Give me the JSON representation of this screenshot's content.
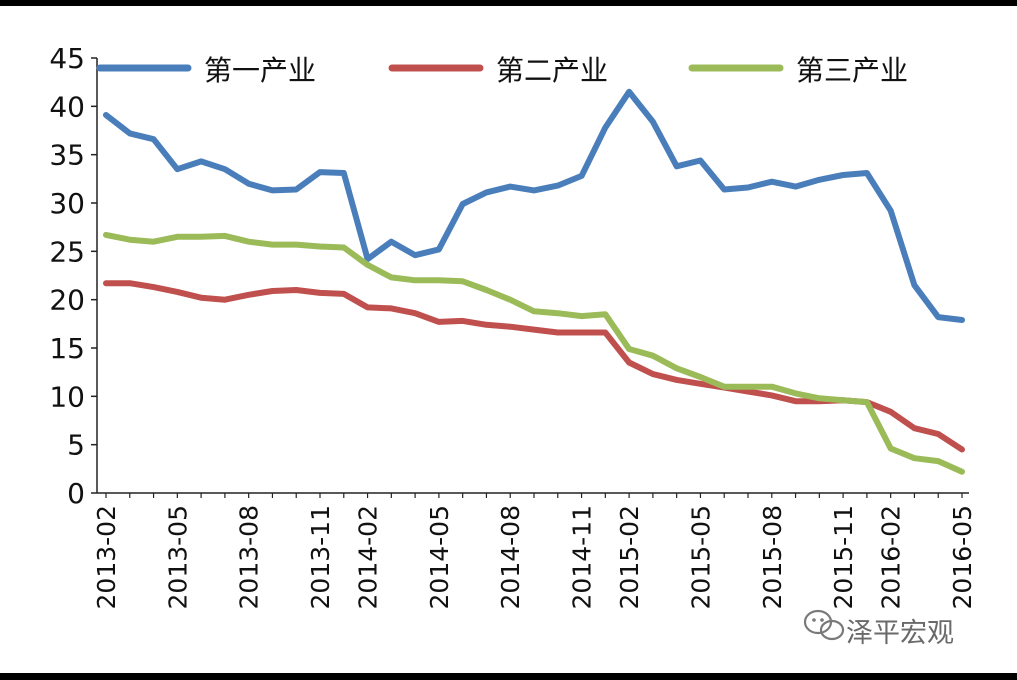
{
  "chart_data": {
    "type": "line",
    "title": "",
    "xlabel": "",
    "ylabel": "",
    "ylim": [
      0,
      45
    ],
    "yticks": [
      "0",
      "5",
      "10",
      "15",
      "20",
      "25",
      "30",
      "35",
      "40",
      "45"
    ],
    "xtick_labels": [
      "2013-02",
      "2013-05",
      "2013-08",
      "2013-11",
      "2014-02",
      "2014-05",
      "2014-08",
      "2014-11",
      "2015-02",
      "2015-05",
      "2015-08",
      "2015-11",
      "2016-02",
      "2016-05"
    ],
    "x": [
      "2013-02",
      "2013-03",
      "2013-04",
      "2013-05",
      "2013-06",
      "2013-07",
      "2013-08",
      "2013-09",
      "2013-10",
      "2013-11",
      "2013-12",
      "2014-02",
      "2014-03",
      "2014-04",
      "2014-05",
      "2014-06",
      "2014-07",
      "2014-08",
      "2014-09",
      "2014-10",
      "2014-11",
      "2014-12",
      "2015-02",
      "2015-03",
      "2015-04",
      "2015-05",
      "2015-06",
      "2015-07",
      "2015-08",
      "2015-09",
      "2015-10",
      "2015-11",
      "2015-12",
      "2016-02",
      "2016-03",
      "2016-04",
      "2016-05"
    ],
    "legend_position": "top",
    "grid": false,
    "series": [
      {
        "name": "第一产业",
        "color": "#4a7ebb",
        "values": [
          39.1,
          37.2,
          36.6,
          33.5,
          34.3,
          33.5,
          32.0,
          31.3,
          31.4,
          33.2,
          33.1,
          24.2,
          26.0,
          24.6,
          25.2,
          29.9,
          31.1,
          31.7,
          31.3,
          31.8,
          32.8,
          37.8,
          41.5,
          38.4,
          33.8,
          34.4,
          31.4,
          31.6,
          32.2,
          31.7,
          32.4,
          32.9,
          33.1,
          29.2,
          21.5,
          18.2,
          17.9
        ]
      },
      {
        "name": "第二产业",
        "color": "#c0504d",
        "values": [
          21.7,
          21.7,
          21.3,
          20.8,
          20.2,
          20.0,
          20.5,
          20.9,
          21.0,
          20.7,
          20.6,
          19.2,
          19.1,
          18.6,
          17.7,
          17.8,
          17.4,
          17.2,
          16.9,
          16.6,
          16.6,
          16.6,
          13.5,
          12.3,
          11.7,
          11.3,
          10.9,
          10.5,
          10.1,
          9.5,
          9.5,
          9.6,
          9.4,
          8.4,
          6.7,
          6.1,
          4.5
        ]
      },
      {
        "name": "第三产业",
        "color": "#9bbb59",
        "values": [
          26.7,
          26.2,
          26.0,
          26.5,
          26.5,
          26.6,
          26.0,
          25.7,
          25.7,
          25.5,
          25.4,
          23.6,
          22.3,
          22.0,
          22.0,
          21.9,
          21.0,
          20.0,
          18.8,
          18.6,
          18.3,
          18.5,
          14.9,
          14.2,
          12.9,
          12.0,
          11.0,
          11.0,
          11.0,
          10.3,
          9.8,
          9.6,
          9.4,
          4.6,
          3.6,
          3.3,
          2.2
        ]
      }
    ]
  },
  "watermark": {
    "text": "泽平宏观",
    "icon": "wechat-icon"
  }
}
